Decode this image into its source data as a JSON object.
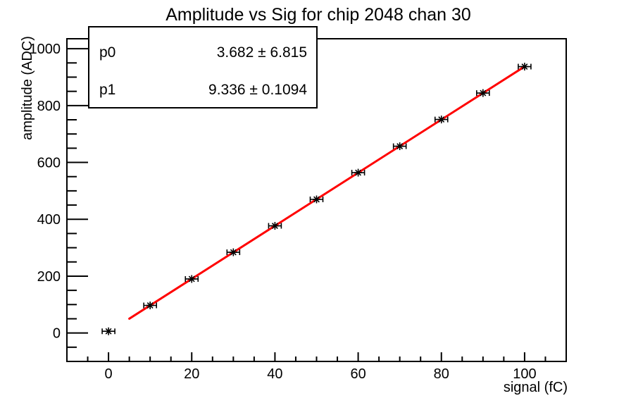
{
  "chart_data": {
    "type": "scatter",
    "title": "Amplitude vs Sig for chip 2048 chan 30",
    "xlabel": "signal (fC)",
    "ylabel": "amplitude (ADC)",
    "x": [
      0,
      10,
      20,
      30,
      40,
      50,
      60,
      70,
      80,
      90,
      100
    ],
    "y": [
      6,
      97,
      190,
      284,
      377,
      470,
      564,
      657,
      751,
      844,
      937
    ],
    "x_error": 1.5,
    "xlim": [
      -10,
      110
    ],
    "ylim": [
      -100,
      1035
    ],
    "xticks": {
      "major_step": 20,
      "minor_step": 5,
      "labels": [
        0,
        20,
        40,
        60,
        80,
        100
      ]
    },
    "yticks": {
      "major_step": 200,
      "minor_step": 50,
      "labels": [
        0,
        200,
        400,
        600,
        800,
        1000
      ]
    },
    "grid": false,
    "legend_position": "top-left",
    "marker": {
      "style": "asterisk-with-x-error-bars",
      "color": "#000000"
    },
    "fit": {
      "type": "linear",
      "p0": 3.682,
      "p0_err": 6.815,
      "p1": 9.336,
      "p1_err": 0.1094,
      "draw_range": [
        5,
        100
      ],
      "color": "#ff0000",
      "width": 3
    }
  },
  "stats_box": {
    "rows": [
      {
        "label": "p0",
        "value": "3.682 ± 6.815"
      },
      {
        "label": "p1",
        "value": "9.336 ± 0.1094"
      }
    ]
  }
}
